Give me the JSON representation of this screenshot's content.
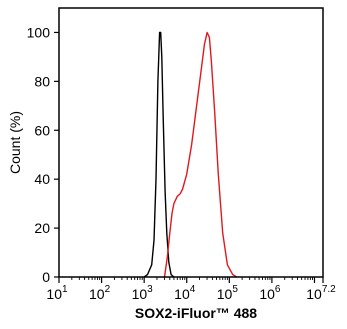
{
  "chart_data": {
    "type": "line",
    "title": "",
    "xlabel": "SOX2-iFluor™ 488",
    "ylabel": "Count  (%)",
    "x_scale": "log",
    "xlim": [
      10,
      15848932
    ],
    "ylim": [
      0,
      110
    ],
    "x_ticks": [
      {
        "base": "10",
        "exp": "1"
      },
      {
        "base": "10",
        "exp": "2"
      },
      {
        "base": "10",
        "exp": "3"
      },
      {
        "base": "10",
        "exp": "4"
      },
      {
        "base": "10",
        "exp": "5"
      },
      {
        "base": "10",
        "exp": "6"
      },
      {
        "base": "10",
        "exp": "7.2"
      }
    ],
    "y_ticks": [
      "0",
      "20",
      "40",
      "60",
      "80",
      "100"
    ],
    "grid": false,
    "series": [
      {
        "color": "#000000",
        "x": [
          1000,
          1200,
          1500,
          1700,
          1900,
          2100,
          2300,
          2450,
          2600,
          2800,
          3100,
          3400,
          3800,
          4300,
          5000
        ],
        "y": [
          0,
          1,
          5,
          15,
          40,
          80,
          100,
          100,
          90,
          65,
          35,
          18,
          6,
          1,
          0
        ]
      },
      {
        "color": "#e0191d",
        "x": [
          3000,
          3500,
          4000,
          4500,
          5000,
          6000,
          7000,
          8000,
          10000,
          13000,
          17000,
          22000,
          26000,
          30000,
          34000,
          38000,
          45000,
          55000,
          70000,
          90000,
          120000,
          150000
        ],
        "y": [
          0,
          8,
          18,
          26,
          30,
          33,
          34,
          36,
          42,
          54,
          70,
          85,
          95,
          100,
          98,
          88,
          68,
          42,
          18,
          5,
          1,
          0
        ]
      }
    ]
  }
}
